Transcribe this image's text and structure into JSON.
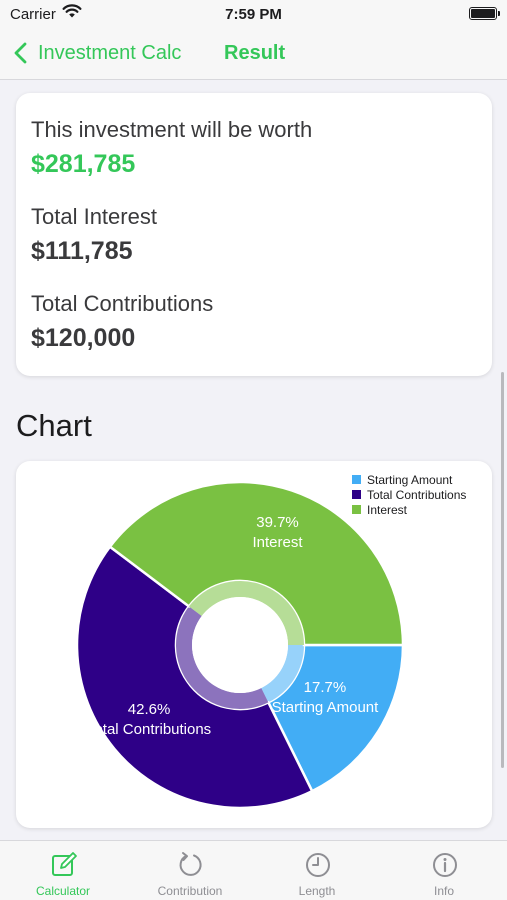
{
  "status_bar": {
    "carrier": "Carrier",
    "time": "7:59 PM"
  },
  "nav": {
    "back_label": "Investment Calc",
    "title": "Result"
  },
  "result": {
    "worth_label": "This investment will be worth",
    "worth_value": "$281,785",
    "interest_label": "Total Interest",
    "interest_value": "$111,785",
    "contrib_label": "Total Contributions",
    "contrib_value": "$120,000"
  },
  "chart_section": {
    "title": "Chart"
  },
  "chart_data": {
    "type": "pie",
    "slices": [
      {
        "name": "Starting Amount",
        "percent": 17.7,
        "label": "17.7%",
        "color": "#42adf5"
      },
      {
        "name": "Total Contributions",
        "percent": 42.6,
        "label": "42.6%",
        "color": "#2e0087"
      },
      {
        "name": "Interest",
        "percent": 39.7,
        "label": "39.7%",
        "color": "#7ac142"
      }
    ],
    "legend": {
      "placement": "top-right",
      "items": [
        "Starting Amount",
        "Total Contributions",
        "Interest"
      ]
    }
  },
  "tabs": [
    {
      "label": "Calculator",
      "icon": "calculator-icon",
      "active": true
    },
    {
      "label": "Contribution",
      "icon": "refresh-icon",
      "active": false
    },
    {
      "label": "Length",
      "icon": "clock-icon",
      "active": false
    },
    {
      "label": "Info",
      "icon": "info-icon",
      "active": false
    }
  ],
  "colors": {
    "accent": "#34c759",
    "tab_inactive": "#8e8e93"
  }
}
